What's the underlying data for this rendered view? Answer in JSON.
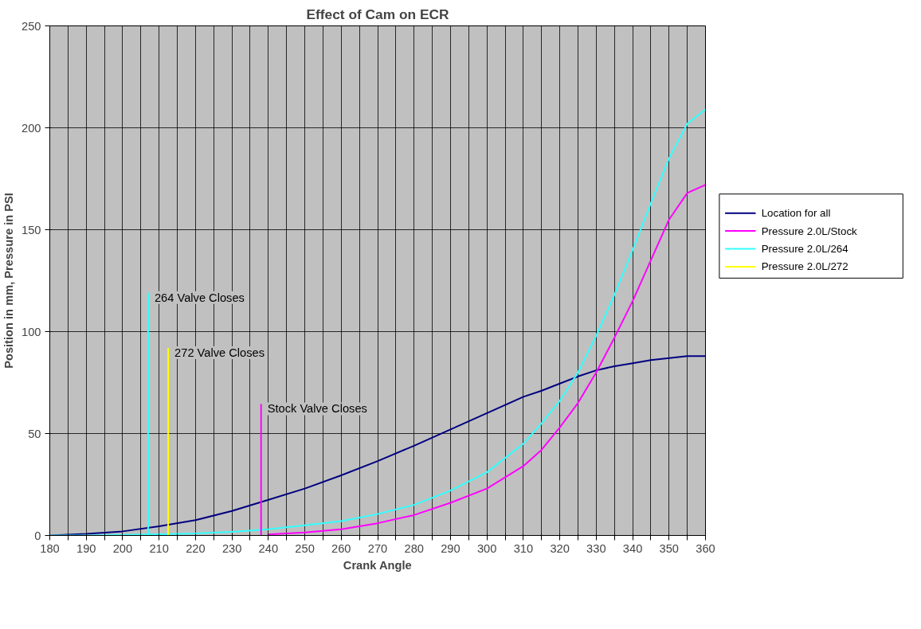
{
  "chart_data": {
    "type": "line",
    "title": "Effect of Cam on ECR",
    "xlabel": "Crank Angle",
    "ylabel": "Position in mm, Pressure in PSI",
    "x": [
      180,
      190,
      200,
      210,
      220,
      230,
      240,
      250,
      260,
      270,
      280,
      290,
      300,
      310,
      315,
      320,
      325,
      330,
      335,
      340,
      345,
      350,
      355,
      360
    ],
    "series": [
      {
        "name": "Location for all",
        "color": "#000080",
        "values": [
          0,
          0.8,
          2,
          4.5,
          7.5,
          12,
          17.5,
          23,
          29.5,
          36.5,
          44,
          52,
          60,
          68,
          71,
          74.5,
          78,
          81,
          83,
          84.5,
          86,
          87,
          88,
          88
        ]
      },
      {
        "name": "Pressure 2.0L/Stock",
        "color": "#ff00ff",
        "values": [
          null,
          null,
          null,
          null,
          null,
          null,
          0.5,
          1.5,
          3,
          6,
          10,
          16,
          23,
          34,
          42,
          53,
          65,
          80,
          97,
          115,
          135,
          155,
          168,
          172
        ]
      },
      {
        "name": "Pressure 2.0L/264",
        "color": "#33ffff",
        "values": [
          0,
          0,
          0.3,
          0.6,
          1,
          1.8,
          3,
          5,
          7,
          10.5,
          15,
          22,
          31,
          45,
          55,
          66,
          80,
          98,
          118,
          140,
          163,
          185,
          202,
          209
        ]
      },
      {
        "name": "Pressure 2.0L/272",
        "color": "#ffff00",
        "values": [
          null,
          null,
          null,
          null,
          null,
          null,
          null,
          null,
          null,
          null,
          null,
          null,
          null,
          null,
          null,
          null,
          null,
          null,
          null,
          null,
          null,
          null,
          null,
          null
        ]
      },
      {
        "color": "#33ffff",
        "x": [
          207,
          207
        ],
        "values": [
          0,
          119
        ]
      },
      {
        "color": "#ffff00",
        "x": [
          212.5,
          212.5
        ],
        "values": [
          0,
          92
        ]
      },
      {
        "color": "#ff00ff",
        "x": [
          238,
          238
        ],
        "values": [
          0,
          64.5
        ]
      }
    ],
    "annotations": [
      {
        "text": "264 Valve Closes",
        "x": 207,
        "y": 119
      },
      {
        "text": "272 Valve Closes",
        "x": 212.5,
        "y": 92
      },
      {
        "text": "Stock Valve Closes",
        "x": 238,
        "y": 64.5
      }
    ],
    "xlim": [
      180,
      360
    ],
    "xticks": [
      180,
      {
        "value": 185,
        "label": null
      },
      190,
      {
        "value": 195,
        "label": null
      },
      200,
      {
        "value": 205,
        "label": null
      },
      210,
      {
        "value": 215,
        "label": null
      },
      220,
      {
        "value": 225,
        "label": null
      },
      230,
      {
        "value": 235,
        "label": null
      },
      240,
      {
        "value": 245,
        "label": null
      },
      250,
      {
        "value": 255,
        "label": null
      },
      260,
      {
        "value": 265,
        "label": null
      },
      270,
      {
        "value": 275,
        "label": null
      },
      280,
      {
        "value": 285,
        "label": null
      },
      290,
      {
        "value": 295,
        "label": null
      },
      300,
      {
        "value": 305,
        "label": null
      },
      310,
      {
        "value": 315,
        "label": null
      },
      320,
      {
        "value": 325,
        "label": null
      },
      330,
      {
        "value": 335,
        "label": null
      },
      340,
      {
        "value": 345,
        "label": null
      },
      350,
      {
        "value": 355,
        "label": null
      },
      360
    ],
    "ylim": [
      0,
      250
    ],
    "yticks": [
      0,
      50,
      100,
      150,
      200,
      250
    ],
    "grid": true,
    "legend": "right",
    "marker": "none",
    "line_style": "solid"
  }
}
